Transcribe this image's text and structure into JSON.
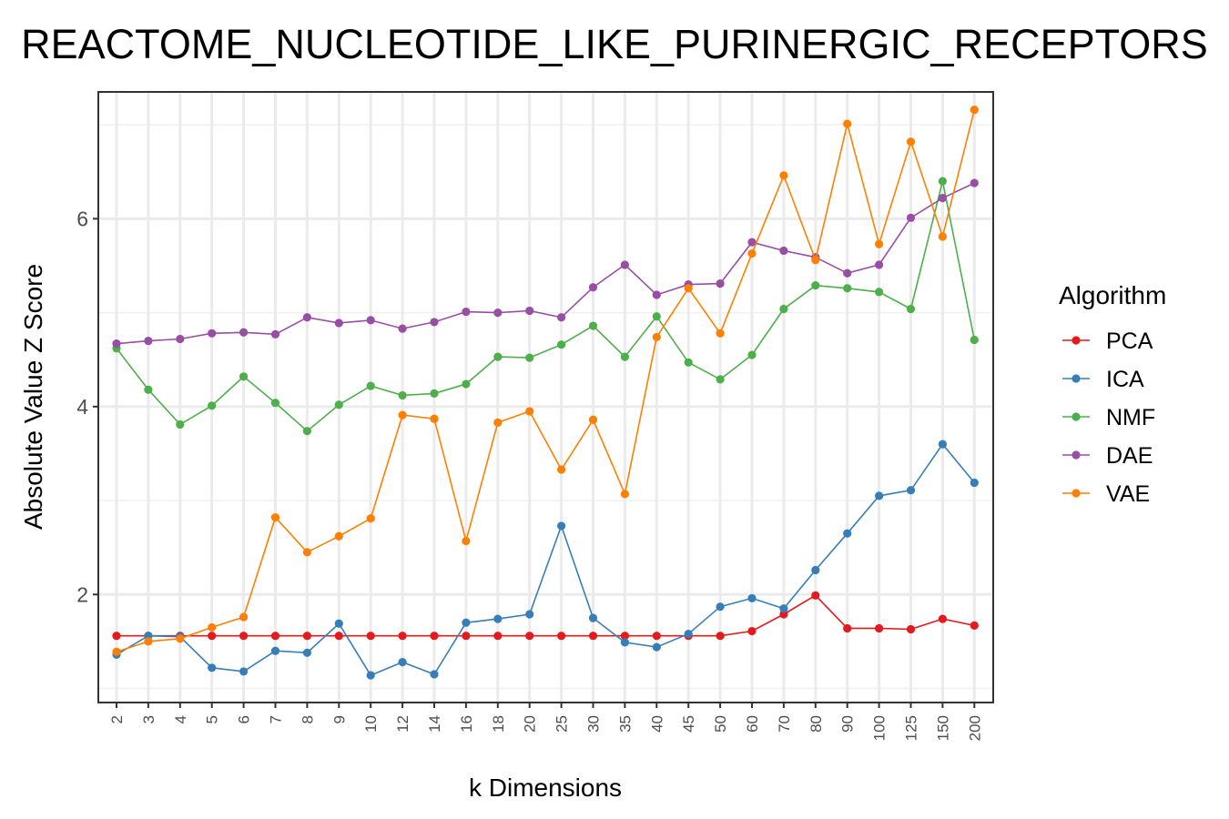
{
  "chart_data": {
    "type": "line",
    "title": "REACTOME_NUCLEOTIDE_LIKE_PURINERGIC_RECEPTORS",
    "xlabel": "k Dimensions",
    "ylabel": "Absolute Value Z Score",
    "categories": [
      "2",
      "3",
      "4",
      "5",
      "6",
      "7",
      "8",
      "9",
      "10",
      "12",
      "14",
      "16",
      "18",
      "20",
      "25",
      "30",
      "35",
      "40",
      "45",
      "50",
      "60",
      "70",
      "80",
      "90",
      "100",
      "125",
      "150",
      "200"
    ],
    "ylim": [
      0.85,
      7.35
    ],
    "yticks": [
      2,
      4,
      6
    ],
    "grid": true,
    "legend": {
      "title": "Algorithm",
      "position": "right"
    },
    "series": [
      {
        "name": "PCA",
        "color": "#e41a1c",
        "values": [
          1.56,
          1.56,
          1.56,
          1.56,
          1.56,
          1.56,
          1.56,
          1.56,
          1.56,
          1.56,
          1.56,
          1.56,
          1.56,
          1.56,
          1.56,
          1.56,
          1.56,
          1.56,
          1.56,
          1.56,
          1.61,
          1.79,
          1.99,
          1.64,
          1.64,
          1.63,
          1.74,
          1.67
        ]
      },
      {
        "name": "ICA",
        "color": "#377eb8",
        "values": [
          1.36,
          1.56,
          1.55,
          1.22,
          1.18,
          1.4,
          1.38,
          1.69,
          1.14,
          1.28,
          1.15,
          1.7,
          1.74,
          1.79,
          2.73,
          1.75,
          1.49,
          1.44,
          1.58,
          1.87,
          1.96,
          1.85,
          2.26,
          2.65,
          3.05,
          3.11,
          3.6,
          3.19
        ]
      },
      {
        "name": "NMF",
        "color": "#4daf4a",
        "values": [
          4.62,
          4.18,
          3.81,
          4.01,
          4.32,
          4.04,
          3.74,
          4.02,
          4.22,
          4.12,
          4.14,
          4.24,
          4.53,
          4.52,
          4.66,
          4.86,
          4.53,
          4.96,
          4.47,
          4.29,
          4.55,
          5.04,
          5.29,
          5.26,
          5.22,
          5.04,
          6.4,
          4.71
        ]
      },
      {
        "name": "DAE",
        "color": "#984ea3",
        "values": [
          4.67,
          4.7,
          4.72,
          4.78,
          4.79,
          4.77,
          4.95,
          4.89,
          4.92,
          4.83,
          4.9,
          5.01,
          5.0,
          5.02,
          4.95,
          5.27,
          5.51,
          5.19,
          5.3,
          5.31,
          5.75,
          5.66,
          5.59,
          5.42,
          5.51,
          6.01,
          6.22,
          6.38
        ]
      },
      {
        "name": "VAE",
        "color": "#ff7f00",
        "values": [
          1.39,
          1.5,
          1.53,
          1.65,
          1.76,
          2.82,
          2.45,
          2.62,
          2.81,
          3.91,
          3.87,
          2.57,
          3.83,
          3.95,
          3.33,
          3.86,
          3.07,
          4.74,
          5.26,
          4.78,
          5.63,
          6.46,
          5.56,
          7.01,
          5.73,
          6.82,
          5.81,
          7.16
        ]
      }
    ]
  }
}
